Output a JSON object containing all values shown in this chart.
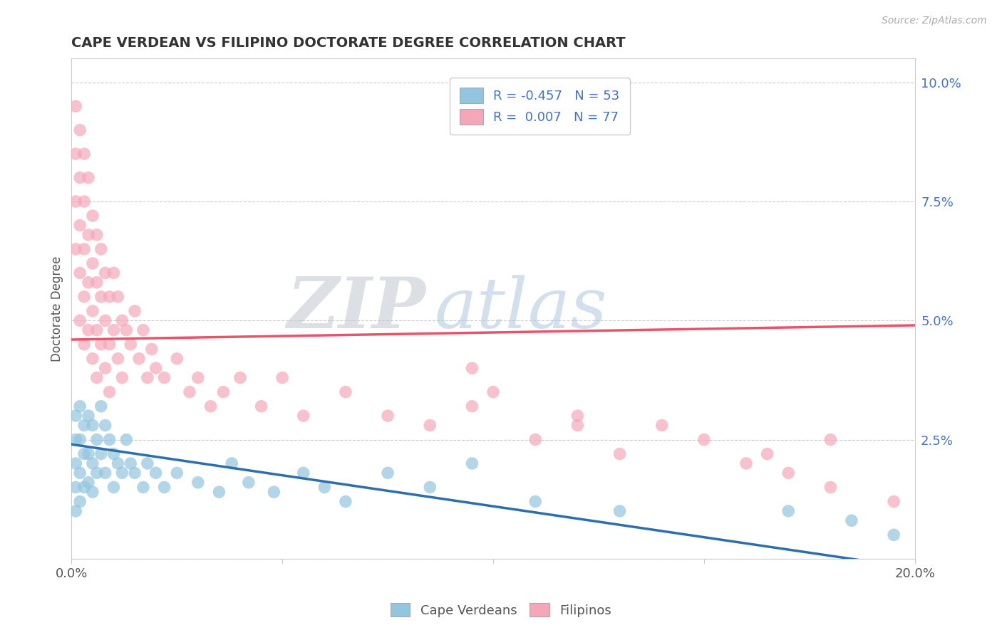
{
  "title": "CAPE VERDEAN VS FILIPINO DOCTORATE DEGREE CORRELATION CHART",
  "source": "Source: ZipAtlas.com",
  "ylabel": "Doctorate Degree",
  "xlim": [
    0.0,
    0.2
  ],
  "ylim": [
    0.0,
    0.105
  ],
  "xticks": [
    0.0,
    0.05,
    0.1,
    0.15,
    0.2
  ],
  "xticklabels": [
    "0.0%",
    "",
    "",
    "",
    "20.0%"
  ],
  "yticks_right": [
    0.0,
    0.025,
    0.05,
    0.075,
    0.1
  ],
  "yticklabels_right": [
    "",
    "2.5%",
    "5.0%",
    "7.5%",
    "10.0%"
  ],
  "blue_color": "#92c5de",
  "pink_color": "#f4a7b9",
  "blue_line_color": "#2b6fac",
  "pink_line_color": "#e8546a",
  "legend_blue_label": "Cape Verdeans",
  "legend_pink_label": "Filipinos",
  "R_blue": -0.457,
  "N_blue": 53,
  "R_pink": 0.007,
  "N_pink": 77,
  "watermark_zip": "ZIP",
  "watermark_atlas": "atlas",
  "background_color": "#ffffff",
  "grid_color": "#cccccc",
  "blue_trend_x0": 0.0,
  "blue_trend_y0": 0.024,
  "blue_trend_x1": 0.2,
  "blue_trend_y1": -0.002,
  "pink_trend_x0": 0.0,
  "pink_trend_y0": 0.046,
  "pink_trend_x1": 0.2,
  "pink_trend_y1": 0.049,
  "cape_verdean_x": [
    0.001,
    0.001,
    0.001,
    0.001,
    0.001,
    0.002,
    0.002,
    0.002,
    0.002,
    0.003,
    0.003,
    0.003,
    0.004,
    0.004,
    0.004,
    0.005,
    0.005,
    0.005,
    0.006,
    0.006,
    0.007,
    0.007,
    0.008,
    0.008,
    0.009,
    0.01,
    0.01,
    0.011,
    0.012,
    0.013,
    0.014,
    0.015,
    0.017,
    0.018,
    0.02,
    0.022,
    0.025,
    0.03,
    0.035,
    0.038,
    0.042,
    0.048,
    0.055,
    0.06,
    0.065,
    0.075,
    0.085,
    0.095,
    0.11,
    0.13,
    0.17,
    0.185,
    0.195
  ],
  "cape_verdean_y": [
    0.03,
    0.025,
    0.02,
    0.015,
    0.01,
    0.032,
    0.025,
    0.018,
    0.012,
    0.028,
    0.022,
    0.015,
    0.03,
    0.022,
    0.016,
    0.028,
    0.02,
    0.014,
    0.025,
    0.018,
    0.032,
    0.022,
    0.028,
    0.018,
    0.025,
    0.022,
    0.015,
    0.02,
    0.018,
    0.025,
    0.02,
    0.018,
    0.015,
    0.02,
    0.018,
    0.015,
    0.018,
    0.016,
    0.014,
    0.02,
    0.016,
    0.014,
    0.018,
    0.015,
    0.012,
    0.018,
    0.015,
    0.02,
    0.012,
    0.01,
    0.01,
    0.008,
    0.005
  ],
  "filipino_x": [
    0.001,
    0.001,
    0.001,
    0.001,
    0.002,
    0.002,
    0.002,
    0.002,
    0.002,
    0.003,
    0.003,
    0.003,
    0.003,
    0.003,
    0.004,
    0.004,
    0.004,
    0.004,
    0.005,
    0.005,
    0.005,
    0.005,
    0.006,
    0.006,
    0.006,
    0.006,
    0.007,
    0.007,
    0.007,
    0.008,
    0.008,
    0.008,
    0.009,
    0.009,
    0.009,
    0.01,
    0.01,
    0.011,
    0.011,
    0.012,
    0.012,
    0.013,
    0.014,
    0.015,
    0.016,
    0.017,
    0.018,
    0.019,
    0.02,
    0.022,
    0.025,
    0.028,
    0.03,
    0.033,
    0.036,
    0.04,
    0.045,
    0.05,
    0.055,
    0.065,
    0.075,
    0.085,
    0.095,
    0.11,
    0.12,
    0.13,
    0.15,
    0.16,
    0.17,
    0.18,
    0.095,
    0.1,
    0.12,
    0.14,
    0.165,
    0.18,
    0.195
  ],
  "filipino_y": [
    0.095,
    0.085,
    0.075,
    0.065,
    0.09,
    0.08,
    0.07,
    0.06,
    0.05,
    0.085,
    0.075,
    0.065,
    0.055,
    0.045,
    0.08,
    0.068,
    0.058,
    0.048,
    0.072,
    0.062,
    0.052,
    0.042,
    0.068,
    0.058,
    0.048,
    0.038,
    0.065,
    0.055,
    0.045,
    0.06,
    0.05,
    0.04,
    0.055,
    0.045,
    0.035,
    0.06,
    0.048,
    0.055,
    0.042,
    0.05,
    0.038,
    0.048,
    0.045,
    0.052,
    0.042,
    0.048,
    0.038,
    0.044,
    0.04,
    0.038,
    0.042,
    0.035,
    0.038,
    0.032,
    0.035,
    0.038,
    0.032,
    0.038,
    0.03,
    0.035,
    0.03,
    0.028,
    0.032,
    0.025,
    0.028,
    0.022,
    0.025,
    0.02,
    0.018,
    0.015,
    0.04,
    0.035,
    0.03,
    0.028,
    0.022,
    0.025,
    0.012
  ]
}
